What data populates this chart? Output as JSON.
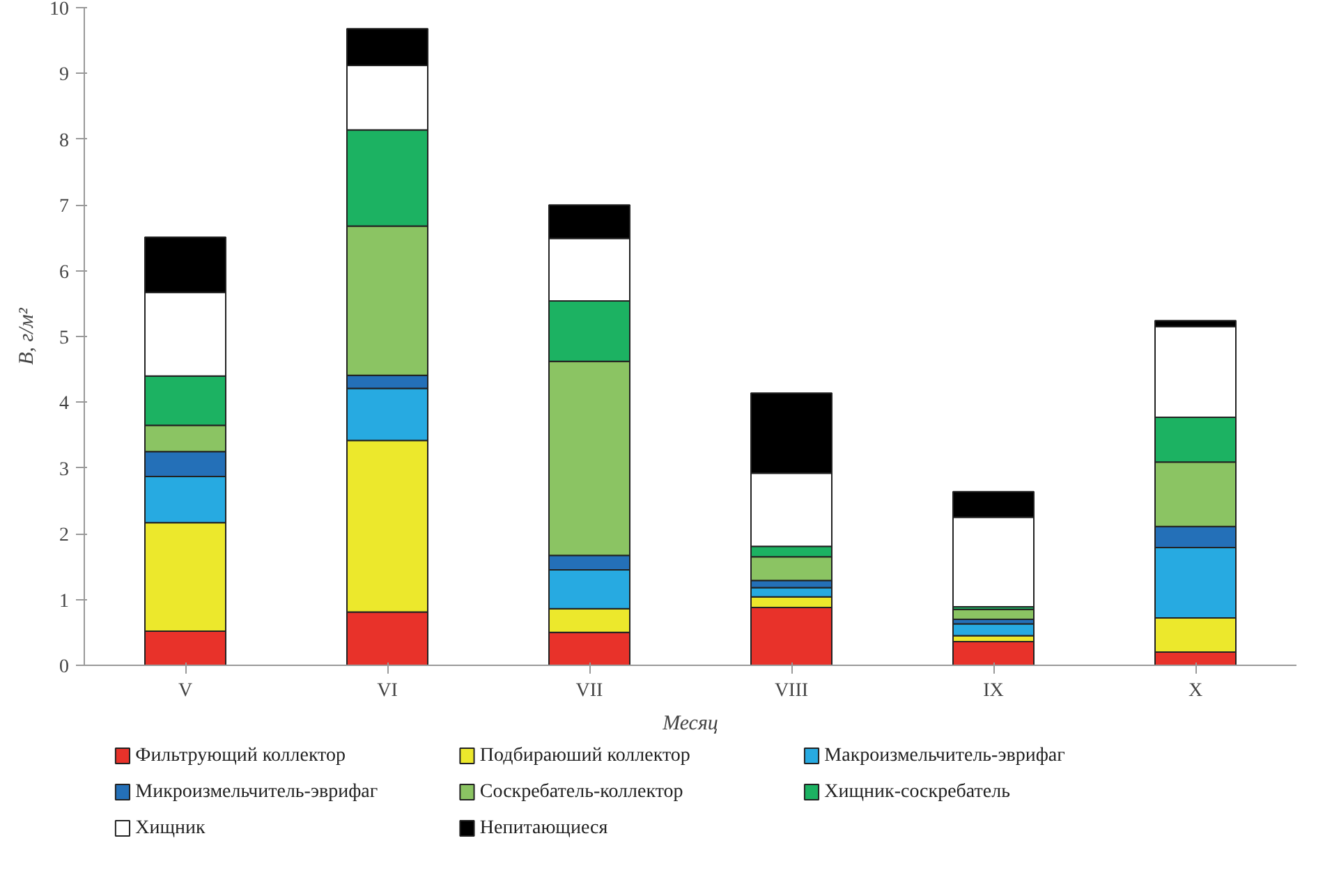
{
  "chart_data": {
    "type": "bar",
    "stacked": true,
    "xlabel": "Месяц",
    "ylabel": "B, г/м²",
    "categories": [
      "V",
      "VI",
      "VII",
      "VIII",
      "IX",
      "X"
    ],
    "ylim": [
      0,
      10
    ],
    "yticks": [
      0,
      1,
      2,
      3,
      4,
      5,
      6,
      7,
      8,
      9,
      10
    ],
    "grid": false,
    "legend": "bottom",
    "series": [
      {
        "name": "Фильтрующий коллектор",
        "color": "#e8322a",
        "values": [
          0.52,
          0.81,
          0.5,
          0.88,
          0.36,
          0.2
        ]
      },
      {
        "name": "Подбираюший коллектор",
        "color": "#ece82c",
        "values": [
          1.65,
          2.61,
          0.36,
          0.16,
          0.09,
          0.52
        ]
      },
      {
        "name": "Макроизмельчитель-эврифаг",
        "color": "#27aae1",
        "values": [
          0.7,
          0.79,
          0.59,
          0.14,
          0.18,
          1.07
        ]
      },
      {
        "name": "Микроизмельчитель-эврифаг",
        "color": "#2470b8",
        "values": [
          0.38,
          0.2,
          0.22,
          0.11,
          0.07,
          0.32
        ]
      },
      {
        "name": "Соскребатель-коллектор",
        "color": "#8bc463",
        "values": [
          0.4,
          2.27,
          2.95,
          0.36,
          0.15,
          0.98
        ]
      },
      {
        "name": "Хищник-соскребатель",
        "color": "#1cb262",
        "values": [
          0.75,
          1.46,
          0.92,
          0.16,
          0.04,
          0.68
        ]
      },
      {
        "name": "Хищник",
        "color": "#ffffff",
        "values": [
          1.27,
          0.98,
          0.95,
          1.11,
          1.36,
          1.38
        ]
      },
      {
        "name": "Непитающиеся",
        "color": "#000000",
        "values": [
          0.84,
          0.56,
          0.51,
          1.22,
          0.39,
          0.09
        ]
      }
    ]
  }
}
